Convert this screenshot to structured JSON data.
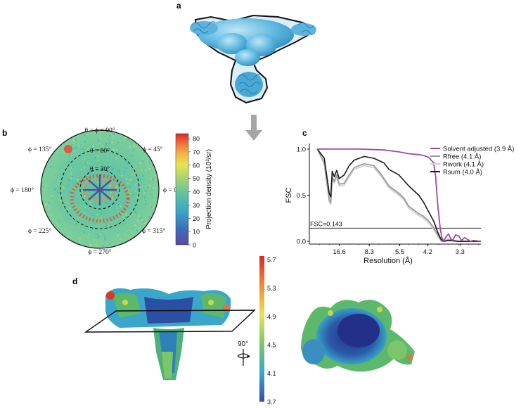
{
  "panels": {
    "a": {
      "letter": "a"
    },
    "b": {
      "letter": "b",
      "angles": {
        "theta_phi_90": "θ = ϕ = 90°",
        "theta_60": "θ = 60°",
        "theta_30": "θ = 30°",
        "phi_0": "ϕ = 0°",
        "phi_45": "ϕ = 45°",
        "phi_135": "ϕ = 135°",
        "phi_180": "ϕ = 180°",
        "phi_225": "ϕ = 225°",
        "phi_270": "ϕ = 270°",
        "phi_315": "ϕ = 315°"
      },
      "colorbar": {
        "title": "Projection density (10³/sr)",
        "ticks": [
          "0",
          "10",
          "20",
          "30",
          "40",
          "50",
          "60",
          "70",
          "80"
        ],
        "colors": [
          "#5b4aa3",
          "#3d6cb8",
          "#3aa6c9",
          "#5cc2a4",
          "#a8d46f",
          "#e6e552",
          "#f7b24a",
          "#ef6a3a",
          "#d42a2a"
        ]
      }
    },
    "c": {
      "letter": "c"
    },
    "d": {
      "letter": "d",
      "rotation_label": "90°",
      "colorbar": {
        "ticks": [
          "5.7",
          "5.3",
          "4.9",
          "4.5",
          "4.1",
          "3.7"
        ],
        "colors": [
          "#d42a2a",
          "#f08a3a",
          "#e6e552",
          "#7cc66a",
          "#3aa6c9",
          "#3d4aa3"
        ]
      }
    }
  },
  "chart_data": {
    "type": "line",
    "xlabel": "Resolution (Å)",
    "ylabel": "FSC",
    "x_ticks": [
      "16.6",
      "8.3",
      "5.5",
      "4.2",
      "3.3"
    ],
    "y_ticks": [
      "0.0",
      "0.5",
      "1.0"
    ],
    "ylim": [
      -0.03,
      1.03
    ],
    "grid": false,
    "legend_position": "top-right",
    "threshold": {
      "value": 0.143,
      "label": "FSC=0.143"
    },
    "series": [
      {
        "name": "Solvent adjusted (3.9 Å)",
        "color": "#a04aa8",
        "x": [
          1.6,
          5,
          10,
          15,
          18,
          20,
          22,
          23,
          24,
          25,
          25.4,
          25.8,
          26.3,
          26.6,
          27,
          27.5,
          28,
          28.4,
          28.8,
          29.4,
          30,
          30.6,
          31.2,
          31.8,
          32.4,
          33,
          34.5
        ],
        "y": [
          1.0,
          1.0,
          1.0,
          0.99,
          0.97,
          0.95,
          0.94,
          0.93,
          0.91,
          0.85,
          0.7,
          0.4,
          0.15,
          0.05,
          0.0,
          0.05,
          0.08,
          0.03,
          0.01,
          0.07,
          0.06,
          0.01,
          0.04,
          0.02,
          0.0,
          0.01,
          0.0
        ]
      },
      {
        "name": "Rfree (4.1 Å)",
        "color": "#9b9b9b",
        "x": [
          1.6,
          3,
          4,
          4.3,
          4.6,
          5,
          5.5,
          6,
          7,
          8,
          9,
          11,
          13,
          14.5,
          16,
          18,
          19,
          20,
          22,
          23,
          24,
          25,
          25.8,
          26.5,
          27,
          28,
          30,
          34.5
        ],
        "y": [
          1.0,
          0.85,
          0.45,
          0.42,
          0.7,
          0.65,
          0.72,
          0.62,
          0.63,
          0.72,
          0.8,
          0.84,
          0.82,
          0.72,
          0.6,
          0.52,
          0.47,
          0.38,
          0.3,
          0.27,
          0.22,
          0.15,
          0.07,
          0.01,
          0.0,
          0.02,
          0.0,
          0.0
        ]
      },
      {
        "name": "Rwork (4.1 Å)",
        "color": "#cfcfcf",
        "x": [
          1.6,
          3,
          4,
          4.3,
          4.6,
          5,
          5.5,
          6,
          7,
          8,
          9,
          11,
          13,
          14.5,
          16,
          18,
          19,
          20,
          22,
          23,
          24,
          25,
          25.8,
          26.5,
          27,
          28,
          30,
          34.5
        ],
        "y": [
          1.0,
          0.84,
          0.43,
          0.4,
          0.68,
          0.63,
          0.7,
          0.6,
          0.61,
          0.7,
          0.78,
          0.82,
          0.8,
          0.7,
          0.58,
          0.5,
          0.45,
          0.36,
          0.28,
          0.25,
          0.2,
          0.13,
          0.06,
          0.0,
          0.0,
          0.01,
          0.0,
          0.0
        ]
      },
      {
        "name": "Rsum (4.0 Å)",
        "color": "#1a1a1a",
        "x": [
          1.6,
          3,
          4,
          4.3,
          4.6,
          5,
          5.5,
          6,
          7,
          8,
          9,
          11,
          13,
          15,
          16,
          18,
          20,
          22,
          23,
          24,
          25,
          25.8,
          26.5,
          27,
          28,
          30,
          34.5
        ],
        "y": [
          1.0,
          0.9,
          0.52,
          0.48,
          0.76,
          0.7,
          0.77,
          0.68,
          0.72,
          0.82,
          0.88,
          0.92,
          0.9,
          0.85,
          0.78,
          0.72,
          0.6,
          0.5,
          0.42,
          0.32,
          0.22,
          0.1,
          0.02,
          0.0,
          0.01,
          0.0,
          0.0
        ]
      }
    ]
  }
}
